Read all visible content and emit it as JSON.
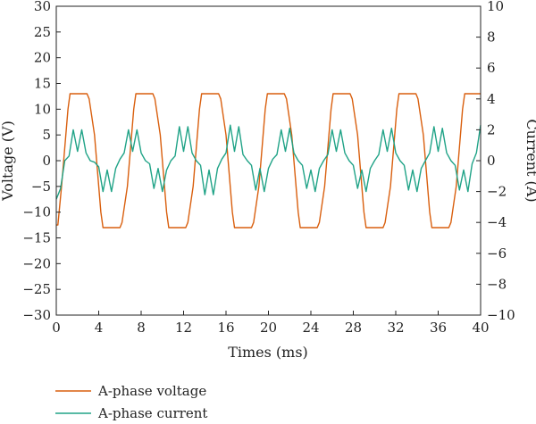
{
  "chart_data": {
    "type": "line",
    "title": "",
    "xlabel": "Times (ms)",
    "ylabel_left": "Voltage (V)",
    "ylabel_right": "Current (A)",
    "xlim": [
      0,
      40
    ],
    "ylim_left": [
      -30,
      30
    ],
    "ylim_right": [
      -10,
      10
    ],
    "x_ticks": [
      0,
      4,
      8,
      12,
      16,
      20,
      24,
      28,
      32,
      36,
      40
    ],
    "y_left_ticks": [
      -30,
      -25,
      -20,
      -15,
      -10,
      -5,
      0,
      5,
      10,
      15,
      20,
      25,
      30
    ],
    "y_right_ticks": [
      -10,
      -8,
      -6,
      -4,
      -2,
      0,
      2,
      4,
      6,
      8,
      10
    ],
    "grid": false,
    "legend_position": "bottom-left",
    "series": [
      {
        "name": "A-phase voltage",
        "axis": "left",
        "color": "#d95f0e",
        "x": [
          0,
          0.15,
          0.5,
          1.1,
          1.3,
          2.9,
          3.1,
          3.6,
          4.2,
          4.4,
          6.0,
          6.2,
          6.7,
          7.3,
          7.5,
          9.1,
          9.3,
          9.8,
          10.4,
          10.6,
          12.2,
          12.4,
          12.9,
          13.5,
          13.7,
          15.3,
          15.5,
          16.0,
          16.6,
          16.8,
          18.4,
          18.6,
          19.1,
          19.7,
          19.9,
          21.5,
          21.7,
          22.2,
          22.8,
          23.0,
          24.6,
          24.8,
          25.3,
          25.9,
          26.1,
          27.7,
          27.9,
          28.4,
          29.0,
          29.2,
          30.8,
          31.0,
          31.5,
          32.1,
          32.3,
          33.9,
          34.1,
          34.6,
          35.2,
          35.4,
          37.0,
          37.2,
          37.7,
          38.3,
          38.5,
          40.0
        ],
        "values": [
          -12.5,
          -12.5,
          -5,
          10,
          13,
          13,
          12,
          5,
          -10,
          -13,
          -13,
          -12,
          -5,
          10,
          13,
          13,
          12,
          5,
          -10,
          -13,
          -13,
          -12,
          -5,
          10,
          13,
          13,
          12,
          5,
          -10,
          -13,
          -13,
          -12,
          -5,
          10,
          13,
          13,
          12,
          5,
          -10,
          -13,
          -13,
          -12,
          -5,
          10,
          13,
          13,
          12,
          5,
          -10,
          -13,
          -13,
          -12,
          -5,
          10,
          13,
          13,
          12,
          5,
          -10,
          -13,
          -13,
          -12,
          -5,
          10,
          13,
          13
        ]
      },
      {
        "name": "A-phase current",
        "axis": "right",
        "color": "#20a387",
        "x": [
          0,
          0.4,
          0.8,
          1.2,
          1.6,
          2.0,
          2.4,
          2.8,
          3.2,
          3.6,
          4.0,
          4.4,
          4.8,
          5.2,
          5.6,
          6.0,
          6.4,
          6.8,
          7.2,
          7.6,
          8.0,
          8.4,
          8.8,
          9.2,
          9.6,
          10.0,
          10.4,
          10.8,
          11.2,
          11.6,
          12.0,
          12.4,
          12.8,
          13.2,
          13.6,
          14.0,
          14.4,
          14.8,
          15.2,
          15.6,
          16.0,
          16.4,
          16.8,
          17.2,
          17.6,
          18.0,
          18.4,
          18.8,
          19.2,
          19.6,
          20.0,
          20.4,
          20.8,
          21.2,
          21.6,
          22.0,
          22.4,
          22.8,
          23.2,
          23.6,
          24.0,
          24.4,
          24.8,
          25.2,
          25.6,
          26.0,
          26.4,
          26.8,
          27.2,
          27.6,
          28.0,
          28.4,
          28.8,
          29.2,
          29.6,
          30.0,
          30.4,
          30.8,
          31.2,
          31.6,
          32.0,
          32.4,
          32.8,
          33.2,
          33.6,
          34.0,
          34.4,
          34.8,
          35.2,
          35.6,
          36.0,
          36.4,
          36.8,
          37.2,
          37.6,
          38.0,
          38.4,
          38.8,
          39.2,
          39.6,
          40.0
        ],
        "values": [
          -2.5,
          -1.8,
          0,
          0.3,
          2.0,
          0.6,
          2.0,
          0.5,
          0,
          -0.1,
          -0.4,
          -2.0,
          -0.6,
          -2.0,
          -0.5,
          0.1,
          0.5,
          2.0,
          0.6,
          2.0,
          0.5,
          0,
          -0.2,
          -1.8,
          -0.5,
          -2.0,
          -0.6,
          0,
          0.3,
          2.2,
          0.6,
          2.2,
          0.5,
          0,
          -0.3,
          -2.2,
          -0.6,
          -2.2,
          -0.5,
          0.1,
          0.5,
          2.3,
          0.6,
          2.2,
          0.4,
          0,
          -0.3,
          -1.9,
          -0.5,
          -2.0,
          -0.5,
          0.1,
          0.4,
          2.0,
          0.6,
          2.1,
          0.5,
          0,
          -0.3,
          -1.8,
          -0.6,
          -2.0,
          -0.5,
          0,
          0.4,
          2.0,
          0.6,
          2.0,
          0.5,
          0,
          -0.3,
          -1.8,
          -0.6,
          -2.0,
          -0.5,
          0,
          0.4,
          2.0,
          0.6,
          2.1,
          0.5,
          0,
          -0.3,
          -1.9,
          -0.6,
          -2.0,
          -0.5,
          0,
          0.5,
          2.2,
          0.6,
          2.1,
          0.5,
          0,
          -0.3,
          -1.9,
          -0.6,
          -2.0,
          -0.2,
          0.5,
          2.3
        ]
      }
    ]
  }
}
